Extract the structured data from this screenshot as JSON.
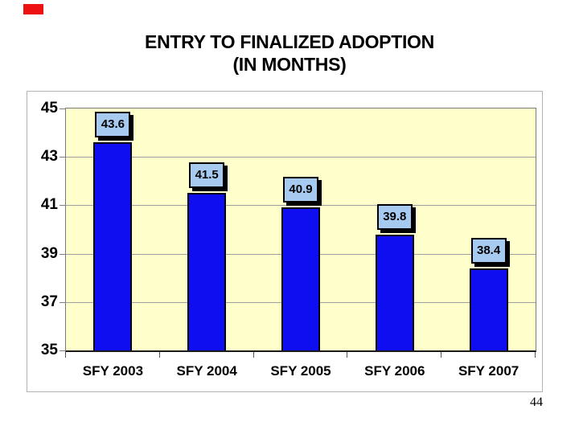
{
  "slide": {
    "title_line1": "ENTRY TO FINALIZED ADOPTION",
    "title_line2": "(IN MONTHS)",
    "page_number": "44",
    "red_marker_color": "#EE1111"
  },
  "chart_data": {
    "type": "bar",
    "title": "ENTRY TO FINALIZED ADOPTION (IN MONTHS)",
    "categories": [
      "SFY 2003",
      "SFY 2004",
      "SFY 2005",
      "SFY 2006",
      "SFY 2007"
    ],
    "values": [
      43.6,
      41.5,
      40.9,
      39.8,
      38.4
    ],
    "data_labels": [
      "43.6",
      "41.5",
      "40.9",
      "39.8",
      "38.4"
    ],
    "xlabel": "",
    "ylabel": "",
    "ylim": [
      35,
      45
    ],
    "yticks": [
      35,
      37,
      39,
      41,
      43,
      45
    ],
    "grid": true,
    "legend": false,
    "colors": {
      "bar_fill": "#0E0EF0",
      "bar_border": "#000010",
      "label_box_fill": "#A6CAF0",
      "label_box_border": "#000000",
      "plot_background": "#FFFFCC",
      "gridline": "#A0A0A0",
      "axis": "#1A1A1A"
    }
  }
}
